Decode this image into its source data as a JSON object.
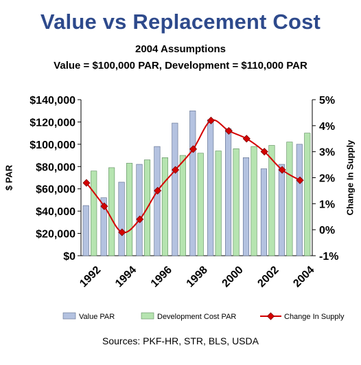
{
  "chart_data": {
    "type": "bar",
    "title": "Value vs Replacement Cost",
    "subtitle": "2004 Assumptions",
    "subtitle2": "Value = $100,000 PAR,  Development = $110,000 PAR",
    "source": "Sources: PKF-HR, STR, BLS, USDA",
    "ylabel": "$ PAR",
    "y2label": "Change In Supply",
    "ylim": [
      0,
      140000
    ],
    "y2lim": [
      -1,
      5
    ],
    "y_ticks": [
      "$0",
      "$20,000",
      "$40,000",
      "$60,000",
      "$80,000",
      "$100,000",
      "$120,000",
      "$140,000"
    ],
    "y2_ticks": [
      "-1%",
      "0%",
      "1%",
      "2%",
      "3%",
      "4%",
      "5%"
    ],
    "categories": [
      1992,
      1993,
      1994,
      1995,
      1996,
      1997,
      1998,
      1999,
      2000,
      2001,
      2002,
      2003,
      2004
    ],
    "x_tick_labels": [
      "1992",
      "",
      "1994",
      "",
      "1996",
      "",
      "1998",
      "",
      "2000",
      "",
      "2002",
      "",
      "2004"
    ],
    "series": [
      {
        "name": "Value PAR",
        "type": "bar",
        "axis": "left",
        "color": "#b4c2e0",
        "values": [
          45000,
          52000,
          66000,
          82000,
          98000,
          119000,
          130000,
          122000,
          114000,
          88000,
          78000,
          82000,
          100000
        ]
      },
      {
        "name": "Development Cost PAR",
        "type": "bar",
        "axis": "left",
        "color": "#b6e4b0",
        "values": [
          76000,
          79000,
          83000,
          86000,
          88000,
          90000,
          92000,
          94000,
          96000,
          98000,
          99000,
          102000,
          110000
        ]
      },
      {
        "name": "Change In Supply",
        "type": "line",
        "axis": "right",
        "color": "#d40000",
        "values": [
          1.8,
          0.9,
          -0.1,
          0.4,
          1.5,
          2.3,
          3.1,
          4.2,
          3.8,
          3.5,
          3.0,
          2.3,
          1.9
        ]
      }
    ],
    "legend_position": "bottom",
    "grid": false
  }
}
